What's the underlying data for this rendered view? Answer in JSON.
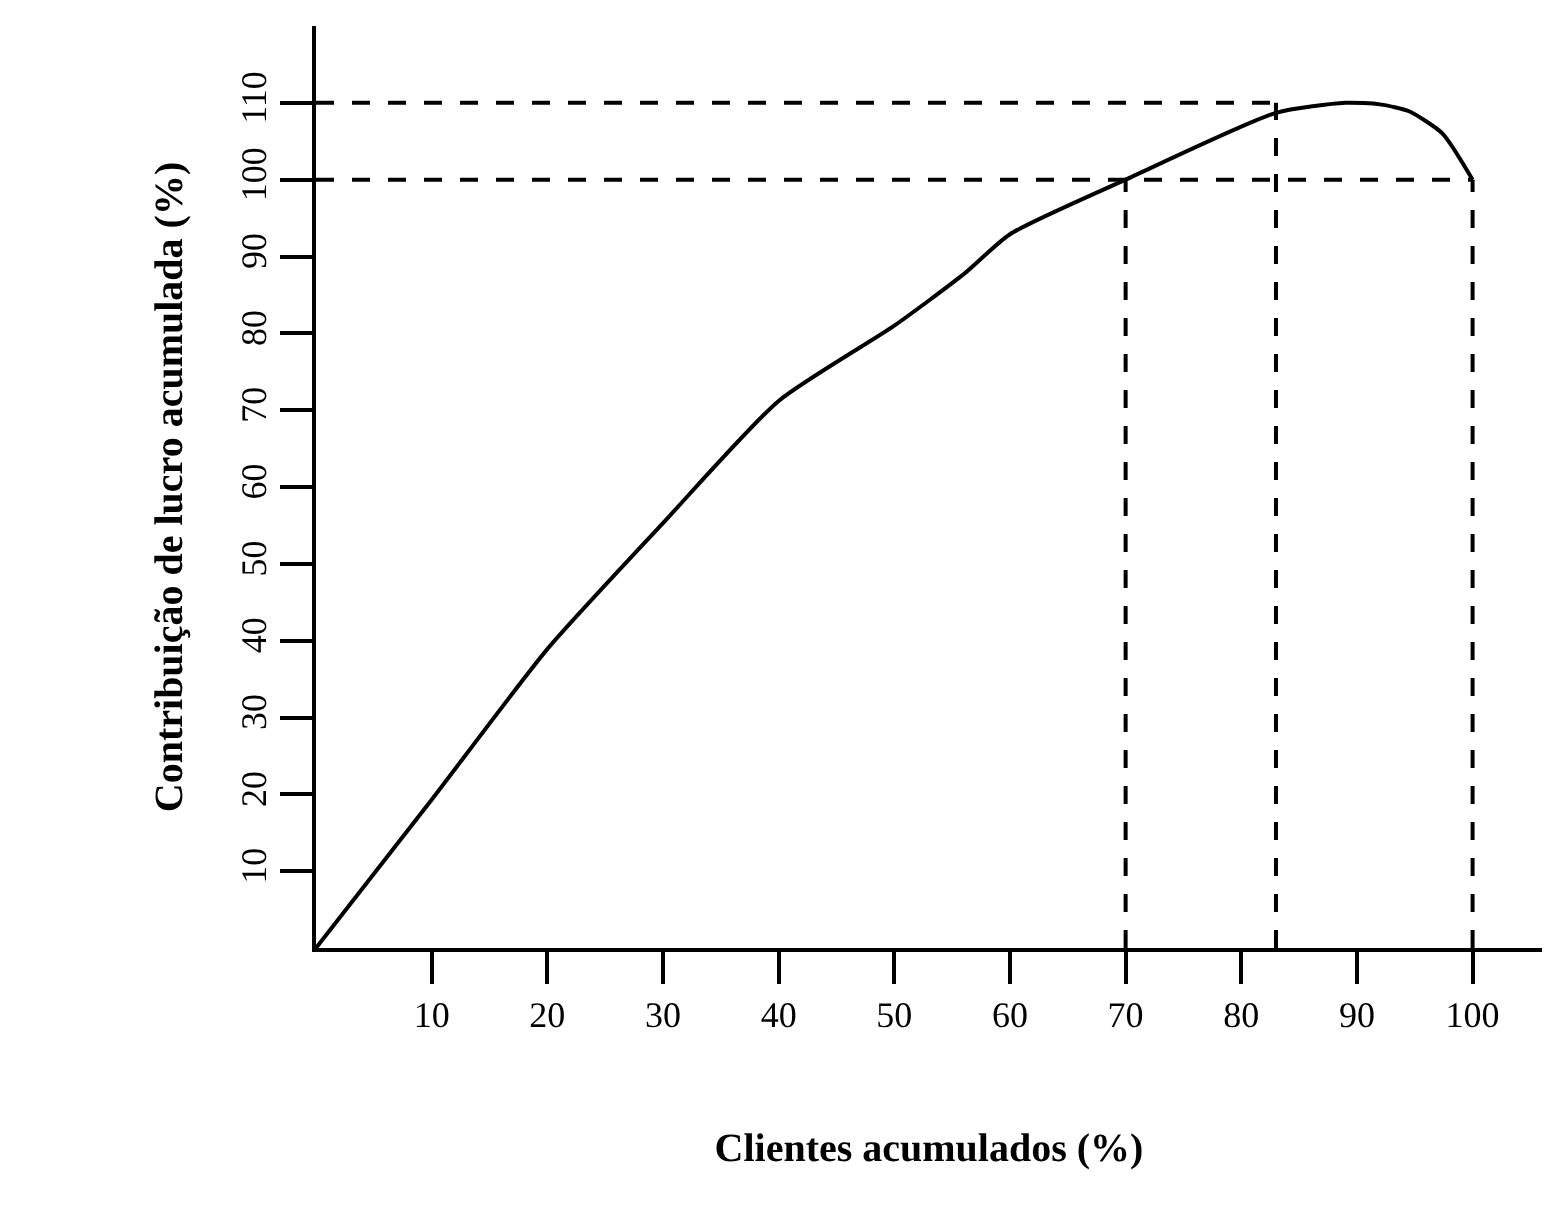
{
  "chart_data": {
    "type": "line",
    "xlabel": "Clientes acumulados (%)",
    "ylabel": "Contribuição de lucro acumulada (%)",
    "xlim": [
      0,
      106
    ],
    "ylim": [
      0,
      120
    ],
    "xticks": [
      10,
      20,
      30,
      40,
      50,
      60,
      70,
      80,
      90,
      100
    ],
    "yticks": [
      10,
      20,
      30,
      40,
      50,
      60,
      70,
      80,
      90,
      100,
      110
    ],
    "grid": false,
    "marker": "none",
    "series": [
      {
        "color": "#000000",
        "line_style": "solid",
        "x": [
          0,
          10,
          20,
          30,
          40,
          50,
          56,
          60,
          70,
          83,
          89,
          92,
          94.5,
          97.4,
          100
        ],
        "values": [
          0,
          19.3,
          38.9,
          55.3,
          71.2,
          81,
          87.7,
          92.9,
          100,
          108.7,
          110,
          109.8,
          108.9,
          106,
          100
        ]
      }
    ],
    "ref_lines": [
      {
        "axis": "y",
        "value": 110,
        "color": "#000000",
        "line_style": "dashed"
      },
      {
        "axis": "y",
        "value": 100,
        "color": "#000000",
        "line_style": "dashed"
      },
      {
        "axis": "x",
        "value": 70,
        "color": "#000000",
        "line_style": "dashed"
      },
      {
        "axis": "x",
        "value": 83,
        "color": "#000000",
        "line_style": "dashed"
      },
      {
        "axis": "x",
        "value": 100,
        "color": "#000000",
        "line_style": "dashed"
      }
    ]
  }
}
